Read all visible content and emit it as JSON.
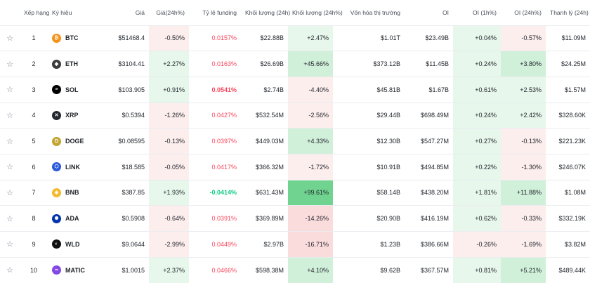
{
  "headers": {
    "rank": "Xếp hạng",
    "symbol": "Ký hiệu",
    "price": "Giá",
    "change": "Giá(24h%)",
    "funding": "Tỷ lệ funding",
    "volume": "Khối lượng (24h)",
    "volume_change": "Khối lượng (24h%)",
    "market_cap": "Vốn hóa thị trường",
    "oi": "OI",
    "oi_1h": "OI (1h%)",
    "oi_24h": "OI (24h%)",
    "liquidation": "Thanh lý (24h)"
  },
  "star_glyph": "☆",
  "rows": [
    {
      "rank": "1",
      "symbol": "BTC",
      "icon": "btc-icon",
      "color": "#f7931a",
      "glyph": "₿",
      "price": "$51468.4",
      "change": "-0.50%",
      "funding": "0.0157%",
      "volume": "$22.88B",
      "volume_change": "+2.47%",
      "market_cap": "$1.01T",
      "oi": "$23.49B",
      "oi_1h": "+0.04%",
      "oi_24h": "-0.57%",
      "liquidation": "$11.09M"
    },
    {
      "rank": "2",
      "symbol": "ETH",
      "icon": "eth-icon",
      "color": "#3c3c3d",
      "glyph": "◆",
      "price": "$3104.41",
      "change": "+2.27%",
      "funding": "0.0163%",
      "volume": "$26.69B",
      "volume_change": "+45.66%",
      "market_cap": "$373.12B",
      "oi": "$11.45B",
      "oi_1h": "+0.24%",
      "oi_24h": "+3.80%",
      "liquidation": "$24.25M"
    },
    {
      "rank": "3",
      "symbol": "SOL",
      "icon": "sol-icon",
      "color": "#000000",
      "glyph": "≡",
      "price": "$103.905",
      "change": "+0.91%",
      "funding": "0.0541%",
      "volume": "$2.74B",
      "volume_change": "-4.40%",
      "market_cap": "$45.81B",
      "oi": "$1.67B",
      "oi_1h": "+0.61%",
      "oi_24h": "+2.53%",
      "liquidation": "$1.57M"
    },
    {
      "rank": "4",
      "symbol": "XRP",
      "icon": "xrp-icon",
      "color": "#23292f",
      "glyph": "✕",
      "price": "$0.5394",
      "change": "-1.26%",
      "funding": "0.0427%",
      "volume": "$532.54M",
      "volume_change": "-2.56%",
      "market_cap": "$29.44B",
      "oi": "$698.49M",
      "oi_1h": "+0.24%",
      "oi_24h": "+2.42%",
      "liquidation": "$328.60K"
    },
    {
      "rank": "5",
      "symbol": "DOGE",
      "icon": "doge-icon",
      "color": "#c2a633",
      "glyph": "D",
      "price": "$0.08595",
      "change": "-0.13%",
      "funding": "0.0397%",
      "volume": "$449.03M",
      "volume_change": "+4.33%",
      "market_cap": "$12.30B",
      "oi": "$547.27M",
      "oi_1h": "+0.27%",
      "oi_24h": "-0.13%",
      "liquidation": "$221.23K"
    },
    {
      "rank": "6",
      "symbol": "LINK",
      "icon": "link-icon",
      "color": "#2a5ada",
      "glyph": "⬡",
      "price": "$18.585",
      "change": "-0.05%",
      "funding": "0.0417%",
      "volume": "$366.32M",
      "volume_change": "-1.72%",
      "market_cap": "$10.91B",
      "oi": "$494.85M",
      "oi_1h": "+0.22%",
      "oi_24h": "-1.30%",
      "liquidation": "$246.07K"
    },
    {
      "rank": "7",
      "symbol": "BNB",
      "icon": "bnb-icon",
      "color": "#f3ba2f",
      "glyph": "◈",
      "price": "$387.85",
      "change": "+1.93%",
      "funding": "-0.0414%",
      "volume": "$631.43M",
      "volume_change": "+99.61%",
      "market_cap": "$58.14B",
      "oi": "$438.20M",
      "oi_1h": "+1.81%",
      "oi_24h": "+11.88%",
      "liquidation": "$1.08M"
    },
    {
      "rank": "8",
      "symbol": "ADA",
      "icon": "ada-icon",
      "color": "#0033ad",
      "glyph": "✺",
      "price": "$0.5908",
      "change": "-0.64%",
      "funding": "0.0391%",
      "volume": "$369.89M",
      "volume_change": "-14.26%",
      "market_cap": "$20.90B",
      "oi": "$416.19M",
      "oi_1h": "+0.62%",
      "oi_24h": "-0.33%",
      "liquidation": "$332.19K"
    },
    {
      "rank": "9",
      "symbol": "WLD",
      "icon": "wld-icon",
      "color": "#111111",
      "glyph": "◐",
      "price": "$9.0644",
      "change": "-2.99%",
      "funding": "0.0449%",
      "volume": "$2.97B",
      "volume_change": "-16.71%",
      "market_cap": "$1.23B",
      "oi": "$386.66M",
      "oi_1h": "-0.26%",
      "oi_24h": "-1.69%",
      "liquidation": "$3.82M"
    },
    {
      "rank": "10",
      "symbol": "MATIC",
      "icon": "matic-icon",
      "color": "#8247e5",
      "glyph": "∞",
      "price": "$1.0015",
      "change": "+2.37%",
      "funding": "0.0466%",
      "volume": "$598.38M",
      "volume_change": "+4.10%",
      "market_cap": "$9.62B",
      "oi": "$367.57M",
      "oi_1h": "+0.81%",
      "oi_24h": "+5.21%",
      "liquidation": "$489.44K"
    }
  ]
}
